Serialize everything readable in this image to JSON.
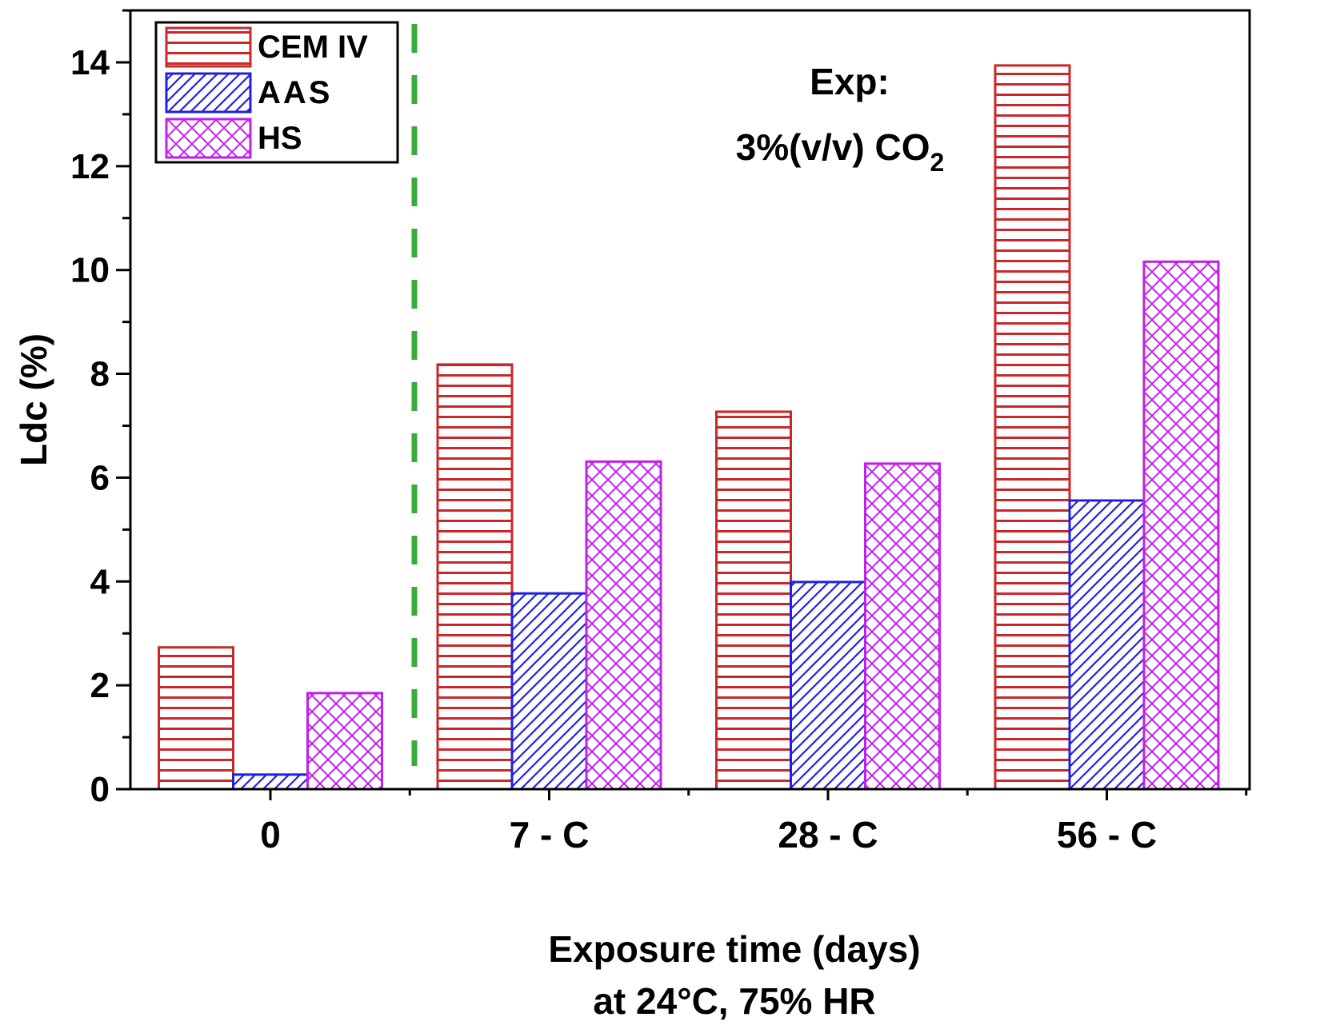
{
  "chart_data": {
    "type": "bar",
    "categories": [
      "0",
      "7 - C",
      "28 - C",
      "56 - C"
    ],
    "series": [
      {
        "name": "CEM IV",
        "color": "#c8282a",
        "pattern": "horizontal",
        "values": [
          2.73,
          8.18,
          7.27,
          13.94
        ]
      },
      {
        "name": "AAS",
        "color": "#2020e0",
        "pattern": "diagonal",
        "values": [
          0.28,
          3.77,
          3.99,
          5.56
        ]
      },
      {
        "name": "HS",
        "color": "#c020e8",
        "pattern": "crosshatch",
        "values": [
          1.85,
          6.31,
          6.27,
          10.16
        ]
      }
    ],
    "xlabel": "Exposure time (days)",
    "xlabel2": "at 24°C, 75% HR",
    "ylabel": "Ldc (%)",
    "ylim": [
      0,
      14.7
    ],
    "yticks": [
      "0",
      "2",
      "4",
      "6",
      "8",
      "10",
      "12",
      "14"
    ],
    "annotation": {
      "line1": "Exp:",
      "line2": "3%(v/v) CO",
      "subscript": "2"
    },
    "divider_color": "#3aaa3a",
    "legend_position": "top-left"
  }
}
